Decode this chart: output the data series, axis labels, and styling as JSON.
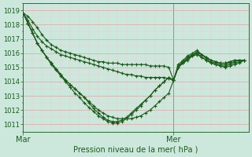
{
  "xlabel": "Pression niveau de la mer( hPa )",
  "background_color": "#cce8dd",
  "grid_major_color": "#e8a0a0",
  "grid_minor_color": "#f0c8c8",
  "line_color": "#1a5c1a",
  "spine_color": "#2d6e2d",
  "ylim": [
    1010.5,
    1019.5
  ],
  "yticks": [
    1011,
    1012,
    1013,
    1014,
    1015,
    1016,
    1017,
    1018,
    1019
  ],
  "xlim": [
    0,
    48
  ],
  "mar_x": 0,
  "mer_x": 32,
  "vline_color": "#444444",
  "lines": [
    [
      1018.8,
      1018.6,
      1018.2,
      1017.8,
      1017.3,
      1016.9,
      1016.6,
      1016.4,
      1016.2,
      1016.1,
      1016.0,
      1015.9,
      1015.8,
      1015.7,
      1015.6,
      1015.5,
      1015.4,
      1015.4,
      1015.3,
      1015.3,
      1015.3,
      1015.2,
      1015.2,
      1015.2,
      1015.2,
      1015.2,
      1015.2,
      1015.1,
      1015.1,
      1015.1,
      1015.1,
      1015.0,
      1014.1,
      1015.0,
      1015.3,
      1015.5,
      1015.8,
      1016.0,
      1015.9,
      1015.7,
      1015.5,
      1015.4,
      1015.3,
      1015.3,
      1015.4,
      1015.5,
      1015.5,
      1015.5
    ],
    [
      1018.8,
      1018.3,
      1017.7,
      1017.2,
      1016.8,
      1016.5,
      1016.3,
      1016.1,
      1015.9,
      1015.8,
      1015.7,
      1015.6,
      1015.5,
      1015.4,
      1015.3,
      1015.2,
      1015.1,
      1015.0,
      1014.9,
      1014.8,
      1014.7,
      1014.6,
      1014.5,
      1014.5,
      1014.4,
      1014.4,
      1014.3,
      1014.3,
      1014.3,
      1014.3,
      1014.3,
      1014.2,
      1014.1,
      1015.0,
      1015.4,
      1015.6,
      1015.9,
      1016.1,
      1015.9,
      1015.7,
      1015.5,
      1015.4,
      1015.3,
      1015.3,
      1015.4,
      1015.5,
      1015.5,
      1015.5
    ],
    [
      1018.8,
      1018.1,
      1017.4,
      1016.7,
      1016.2,
      1015.7,
      1015.3,
      1014.9,
      1014.5,
      1014.1,
      1013.8,
      1013.5,
      1013.2,
      1012.9,
      1012.6,
      1012.3,
      1012.0,
      1011.8,
      1011.6,
      1011.5,
      1011.4,
      1011.4,
      1011.4,
      1011.4,
      1011.5,
      1011.6,
      1011.8,
      1012.0,
      1012.3,
      1012.6,
      1012.9,
      1013.2,
      1014.1,
      1015.2,
      1015.5,
      1015.8,
      1016.0,
      1016.2,
      1015.9,
      1015.6,
      1015.4,
      1015.3,
      1015.2,
      1015.2,
      1015.3,
      1015.4,
      1015.5,
      1015.5
    ],
    [
      1018.8,
      1018.1,
      1017.4,
      1016.7,
      1016.2,
      1015.7,
      1015.3,
      1014.9,
      1014.5,
      1014.1,
      1013.8,
      1013.5,
      1013.2,
      1012.9,
      1012.5,
      1012.1,
      1011.8,
      1011.5,
      1011.3,
      1011.2,
      1011.2,
      1011.3,
      1011.5,
      1011.8,
      1012.1,
      1012.4,
      1012.7,
      1013.0,
      1013.4,
      1013.7,
      1014.0,
      1014.3,
      1014.1,
      1015.1,
      1015.4,
      1015.7,
      1015.9,
      1016.0,
      1015.7,
      1015.5,
      1015.3,
      1015.2,
      1015.1,
      1015.1,
      1015.2,
      1015.3,
      1015.4,
      1015.5
    ],
    [
      1018.8,
      1018.1,
      1017.4,
      1016.7,
      1016.2,
      1015.7,
      1015.2,
      1014.8,
      1014.4,
      1014.0,
      1013.6,
      1013.2,
      1012.9,
      1012.5,
      1012.2,
      1011.9,
      1011.6,
      1011.4,
      1011.2,
      1011.1,
      1011.1,
      1011.2,
      1011.4,
      1011.7,
      1012.0,
      1012.3,
      1012.7,
      1013.0,
      1013.4,
      1013.7,
      1014.0,
      1014.3,
      1014.1,
      1015.0,
      1015.3,
      1015.6,
      1015.8,
      1015.9,
      1015.7,
      1015.5,
      1015.3,
      1015.2,
      1015.1,
      1015.0,
      1015.1,
      1015.2,
      1015.3,
      1015.5
    ]
  ],
  "n_points": 48,
  "xtick_labels": [
    "Mar",
    "Mer"
  ],
  "xtick_pos": [
    0,
    32
  ]
}
